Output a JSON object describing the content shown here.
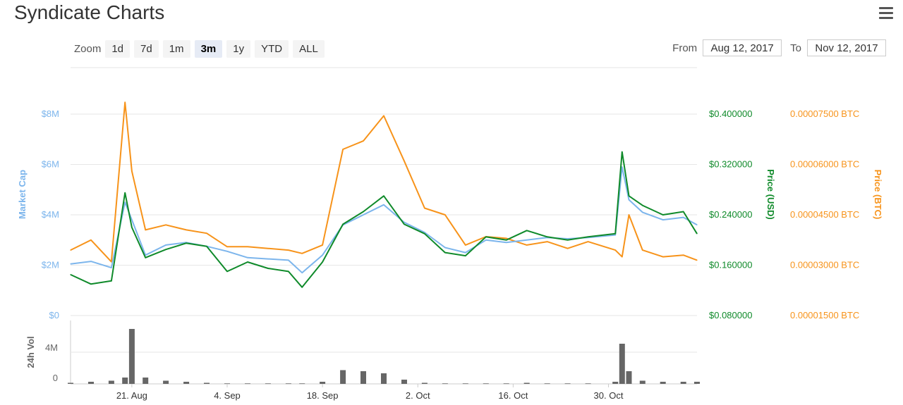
{
  "page": {
    "title": "Syndicate Charts",
    "menu_icon": "hamburger-menu-icon"
  },
  "toolbar": {
    "zoom_label": "Zoom",
    "zoom_buttons": [
      "1d",
      "7d",
      "1m",
      "3m",
      "1y",
      "YTD",
      "ALL"
    ],
    "active_zoom": "3m",
    "from_label": "From",
    "from_value": "Aug 12, 2017",
    "to_label": "To",
    "to_value": "Nov 12, 2017"
  },
  "colors": {
    "market_cap": "#7cb5ec",
    "price_usd": "#0f8a2a",
    "price_btc": "#f7931a",
    "volume": "#666666",
    "grid": "#e6e6e6"
  },
  "chart_data": [
    {
      "type": "line",
      "x_axis": {
        "ticks": [
          "21. Aug",
          "4. Sep",
          "18. Sep",
          "2. Oct",
          "16. Oct",
          "30. Oct"
        ],
        "range": [
          "2017-08-12",
          "2017-11-12"
        ]
      },
      "axes": {
        "market_cap": {
          "label": "Market Cap",
          "ticks": [
            "$0",
            "$2M",
            "$4M",
            "$6M",
            "$8M"
          ],
          "ylim": [
            0,
            8000000
          ]
        },
        "price_usd": {
          "label": "Price (USD)",
          "ticks": [
            "$0.080000",
            "$0.160000",
            "$0.240000",
            "$0.320000",
            "$0.400000"
          ],
          "ylim": [
            0.08,
            0.4
          ]
        },
        "price_btc": {
          "label": "Price (BTC)",
          "ticks": [
            "0.00001500 BTC",
            "0.00003000 BTC",
            "0.00004500 BTC",
            "0.00006000 BTC",
            "0.00007500 BTC"
          ],
          "ylim": [
            1.5e-05,
            7.5e-05
          ]
        }
      },
      "x": [
        "2017-08-12",
        "2017-08-15",
        "2017-08-18",
        "2017-08-20",
        "2017-08-21",
        "2017-08-23",
        "2017-08-26",
        "2017-08-29",
        "2017-09-01",
        "2017-09-04",
        "2017-09-07",
        "2017-09-10",
        "2017-09-13",
        "2017-09-15",
        "2017-09-18",
        "2017-09-21",
        "2017-09-24",
        "2017-09-27",
        "2017-09-30",
        "2017-10-03",
        "2017-10-06",
        "2017-10-09",
        "2017-10-12",
        "2017-10-15",
        "2017-10-18",
        "2017-10-21",
        "2017-10-24",
        "2017-10-27",
        "2017-10-31",
        "2017-11-01",
        "2017-11-02",
        "2017-11-04",
        "2017-11-07",
        "2017-11-10",
        "2017-11-12"
      ],
      "series": [
        {
          "name": "market_cap",
          "axis": "market_cap",
          "values": [
            2050000,
            2150000,
            1900000,
            4500000,
            3800000,
            2400000,
            2800000,
            2900000,
            2750000,
            2550000,
            2300000,
            2250000,
            2200000,
            1700000,
            2400000,
            3600000,
            4000000,
            4400000,
            3700000,
            3300000,
            2700000,
            2500000,
            3000000,
            2900000,
            3000000,
            3100000,
            3050000,
            3100000,
            3200000,
            5900000,
            4600000,
            4100000,
            3800000,
            3900000,
            3600000
          ]
        },
        {
          "name": "price_usd",
          "axis": "price_usd",
          "values": [
            0.145,
            0.13,
            0.135,
            0.275,
            0.22,
            0.172,
            0.185,
            0.195,
            0.19,
            0.15,
            0.165,
            0.155,
            0.15,
            0.125,
            0.165,
            0.225,
            0.245,
            0.27,
            0.225,
            0.21,
            0.18,
            0.175,
            0.205,
            0.2,
            0.215,
            0.205,
            0.2,
            0.205,
            0.21,
            0.34,
            0.27,
            0.255,
            0.24,
            0.245,
            0.21
          ]
        },
        {
          "name": "price_btc",
          "axis": "price_btc",
          "values": [
            3.45e-05,
            3.75e-05,
            3.1e-05,
            7.85e-05,
            5.8e-05,
            4.05e-05,
            4.2e-05,
            4.05e-05,
            3.95e-05,
            3.55e-05,
            3.55e-05,
            3.5e-05,
            3.45e-05,
            3.35e-05,
            3.6e-05,
            6.45e-05,
            6.7e-05,
            7.45e-05,
            6.1e-05,
            4.7e-05,
            4.5e-05,
            3.6e-05,
            3.85e-05,
            3.8e-05,
            3.6e-05,
            3.7e-05,
            3.5e-05,
            3.7e-05,
            3.45e-05,
            3.25e-05,
            4.5e-05,
            3.45e-05,
            3.25e-05,
            3.3e-05,
            3.15e-05
          ]
        }
      ]
    },
    {
      "type": "bar",
      "title": "",
      "ylabel": "24h Vol",
      "y_ticks": [
        "0",
        "4M"
      ],
      "ylim": [
        0,
        6000000
      ],
      "x": [
        "2017-08-12",
        "2017-08-15",
        "2017-08-18",
        "2017-08-20",
        "2017-08-21",
        "2017-08-23",
        "2017-08-26",
        "2017-08-29",
        "2017-09-01",
        "2017-09-04",
        "2017-09-07",
        "2017-09-10",
        "2017-09-13",
        "2017-09-15",
        "2017-09-18",
        "2017-09-21",
        "2017-09-24",
        "2017-09-27",
        "2017-09-30",
        "2017-10-03",
        "2017-10-06",
        "2017-10-09",
        "2017-10-12",
        "2017-10-15",
        "2017-10-18",
        "2017-10-21",
        "2017-10-24",
        "2017-10-27",
        "2017-10-31",
        "2017-11-01",
        "2017-11-02",
        "2017-11-04",
        "2017-11-07",
        "2017-11-10",
        "2017-11-12"
      ],
      "values": [
        100000,
        200000,
        300000,
        600000,
        5200000,
        600000,
        300000,
        200000,
        100000,
        50000,
        50000,
        50000,
        50000,
        50000,
        200000,
        1300000,
        1200000,
        1000000,
        400000,
        100000,
        50000,
        50000,
        50000,
        50000,
        100000,
        50000,
        50000,
        50000,
        200000,
        3800000,
        1200000,
        300000,
        200000,
        200000,
        200000
      ]
    }
  ]
}
